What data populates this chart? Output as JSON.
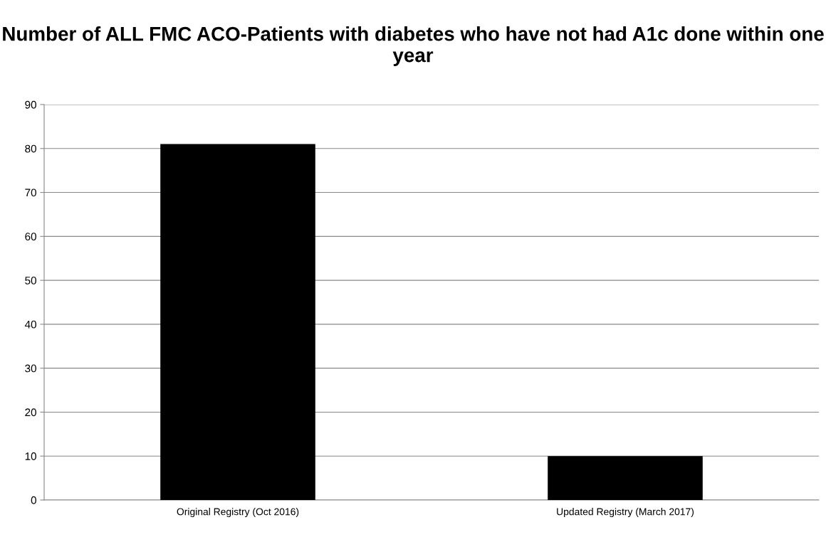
{
  "chart_data": {
    "type": "bar",
    "title": "Number of ALL FMC ACO-Patients with diabetes who have not had A1c done within one year",
    "categories": [
      "Original Registry (Oct 2016)",
      "Updated Registry (March 2017)"
    ],
    "values": [
      81,
      10
    ],
    "color": "#000000",
    "ylim": [
      0,
      90
    ],
    "yticks": [
      0,
      10,
      20,
      30,
      40,
      50,
      60,
      70,
      80,
      90
    ],
    "grid": "y",
    "legend": false
  }
}
